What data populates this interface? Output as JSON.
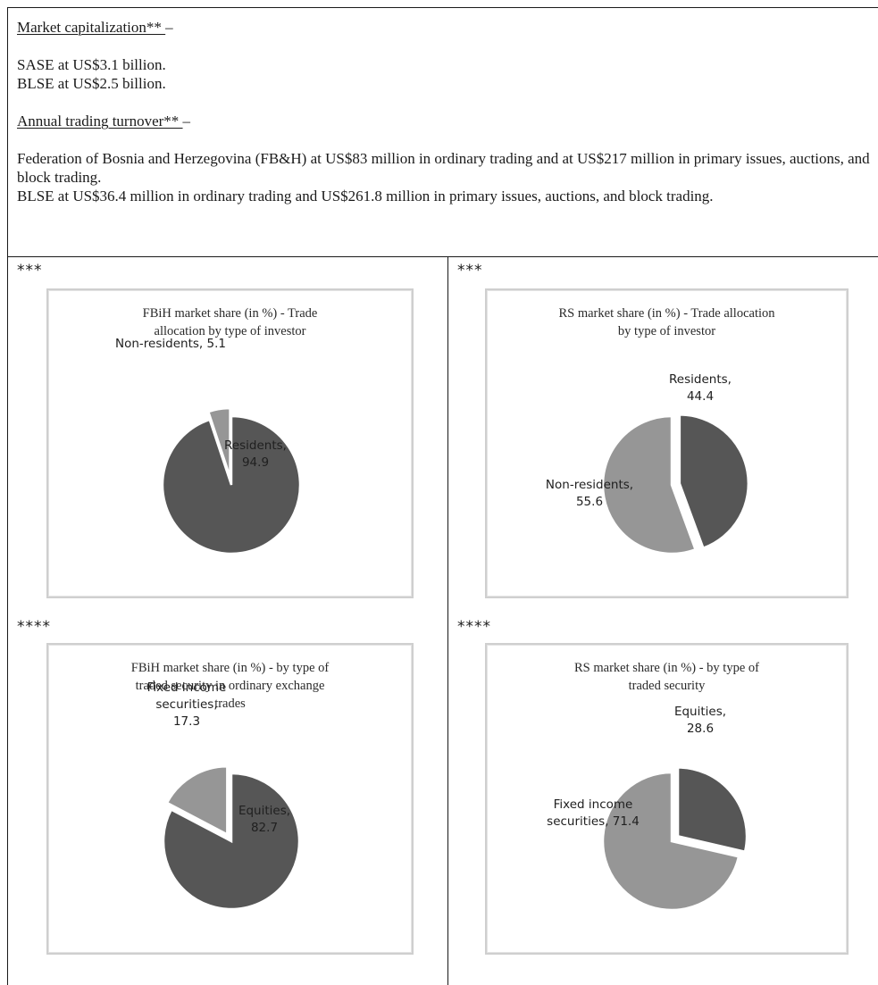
{
  "market_cap": {
    "heading": "Market capitalization** ",
    "dash": "–",
    "lines": [
      "SASE at US$3.1 billion.",
      "BLSE at US$2.5 billion."
    ]
  },
  "turnover": {
    "heading": "Annual trading turnover** ",
    "dash": "–",
    "line_1": "Federation of Bosnia and Herzegovina (FB&H) at US$83 million in ordinary trading and at US$217 million in primary issues, auctions, and block trading.",
    "line_2": "BLSE at US$36.4 million in ordinary trading and US$261.8 million in primary issues, auctions, and block trading."
  },
  "notes": {
    "row_1": "***",
    "row_2": "****"
  },
  "colors": {
    "dark_slice": "#565656",
    "light_slice": "#969696",
    "card_border": "#cfcfcf",
    "rule": "#1a1a1a"
  },
  "chart_data": [
    {
      "type": "pie",
      "title": "FBiH market share (in %) - Trade allocation by type of investor",
      "title_lines": [
        "FBiH market share (in %) - Trade",
        "allocation  by type of investor"
      ],
      "slices": [
        {
          "label": "Residents",
          "value": 94.9,
          "label_lines": [
            "Residents,",
            "94.9"
          ],
          "color": "#565656",
          "exploded": false
        },
        {
          "label": "Non-residents",
          "value": 5.1,
          "label_lines": [
            "Non-residents, 5.1"
          ],
          "color": "#969696",
          "exploded": true
        }
      ],
      "start_angle_deg": 0
    },
    {
      "type": "pie",
      "title": "RS market share (in %) - Trade allocation by type of investor",
      "title_lines": [
        "RS market share (in %) - Trade allocation",
        "by type of investor"
      ],
      "slices": [
        {
          "label": "Residents",
          "value": 44.4,
          "label_lines": [
            "Residents,",
            "44.4"
          ],
          "color": "#565656",
          "exploded": true
        },
        {
          "label": "Non-residents",
          "value": 55.6,
          "label_lines": [
            "Non-residents,",
            "55.6"
          ],
          "color": "#969696",
          "exploded": false
        }
      ],
      "start_angle_deg": 0
    },
    {
      "type": "pie",
      "title": "FBiH market share (in %) - by type of traded security in ordinary exchange trades",
      "title_lines": [
        "FBiH market share (in %) - by type of",
        "traded security in ordinary exchange",
        "trades"
      ],
      "slices": [
        {
          "label": "Equities",
          "value": 82.7,
          "label_lines": [
            "Equities,",
            "82.7"
          ],
          "color": "#565656",
          "exploded": false
        },
        {
          "label": "Fixed income securities",
          "value": 17.3,
          "label_lines": [
            "Fixed income",
            "securities,",
            "17.3"
          ],
          "color": "#969696",
          "exploded": true
        }
      ],
      "start_angle_deg": 0
    },
    {
      "type": "pie",
      "title": "RS market share (in %) - by type of traded security",
      "title_lines": [
        "RS market share (in %) - by type of",
        "traded security"
      ],
      "slices": [
        {
          "label": "Equities",
          "value": 28.6,
          "label_lines": [
            "Equities,",
            "28.6"
          ],
          "color": "#565656",
          "exploded": true
        },
        {
          "label": "Fixed income securities",
          "value": 71.4,
          "label_lines": [
            "Fixed income",
            "securities, 71.4"
          ],
          "color": "#969696",
          "exploded": false
        }
      ],
      "start_angle_deg": 0
    }
  ]
}
